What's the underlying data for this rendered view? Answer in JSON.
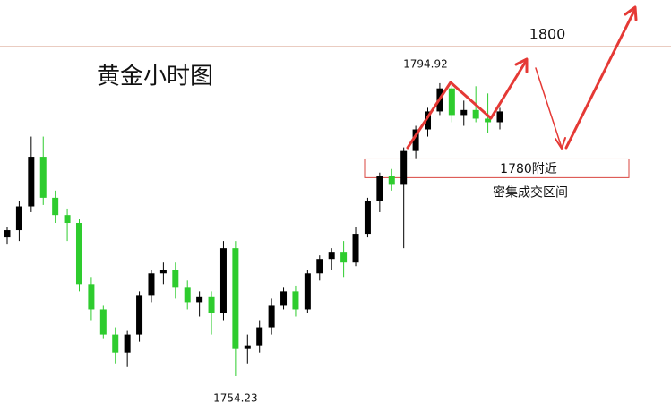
{
  "chart_data": {
    "type": "candlestick",
    "title": "黄金小时图",
    "ylim": [
      1748.13,
      1806.48
    ],
    "up_color": "#000000",
    "down_color": "#2ecc2e",
    "open": [
      1773.5,
      1774.5,
      1777.8,
      1784.7,
      1779,
      1776.6,
      1775.5,
      1767,
      1763.5,
      1760,
      1757.5,
      1760,
      1765.5,
      1768.5,
      1769,
      1766.5,
      1764.5,
      1765.2,
      1763,
      1772,
      1758,
      1758.5,
      1761,
      1764,
      1766,
      1763.5,
      1768.5,
      1770.5,
      1771.5,
      1770,
      1774,
      1778.5,
      1782,
      1780.8,
      1785.5,
      1788.5,
      1791,
      1794.2,
      1790.5,
      1791.2,
      1790,
      1789.5
    ],
    "high": [
      1775,
      1778.5,
      1787.5,
      1787.5,
      1780,
      1777.5,
      1776,
      1768,
      1764,
      1761,
      1760.5,
      1766,
      1769,
      1770,
      1770,
      1767.5,
      1766,
      1766,
      1773,
      1773,
      1760,
      1762,
      1765,
      1766.5,
      1766.8,
      1769,
      1771,
      1772,
      1773,
      1775,
      1779,
      1782.5,
      1783,
      1786,
      1789,
      1791.5,
      1794.92,
      1794.7,
      1792.5,
      1794.5,
      1793.5,
      1791.5
    ],
    "low": [
      1772.5,
      1773,
      1777,
      1778,
      1775.5,
      1773,
      1766,
      1762,
      1759.5,
      1756,
      1755.5,
      1759,
      1764.5,
      1767,
      1765,
      1763.5,
      1762.5,
      1760,
      1762,
      1754.23,
      1756,
      1757.5,
      1760,
      1763.5,
      1762.5,
      1763,
      1767.5,
      1769,
      1768,
      1769.5,
      1773.5,
      1777,
      1780,
      1772,
      1784.5,
      1787.5,
      1790.5,
      1789.5,
      1789,
      1789.5,
      1788,
      1788.5
    ],
    "close": [
      1774.5,
      1777.8,
      1784.7,
      1779,
      1776.6,
      1775.5,
      1767,
      1763.5,
      1760,
      1757.5,
      1760,
      1765.5,
      1768.5,
      1769,
      1766.5,
      1764.5,
      1765.2,
      1763,
      1772,
      1758,
      1758.5,
      1761,
      1764,
      1766,
      1763.5,
      1768.5,
      1770.5,
      1771.5,
      1770,
      1774,
      1778.5,
      1782,
      1780.8,
      1785.5,
      1788.5,
      1791,
      1794.2,
      1790.5,
      1791.2,
      1790,
      1789.5,
      1791
    ],
    "ref_line": {
      "value": 1800,
      "color": "#c8785a"
    },
    "zone": {
      "label": "1780附近",
      "note": "密集成交区间",
      "range": [
        1781.8,
        1784.4
      ],
      "color": "#d9453f"
    }
  }
}
